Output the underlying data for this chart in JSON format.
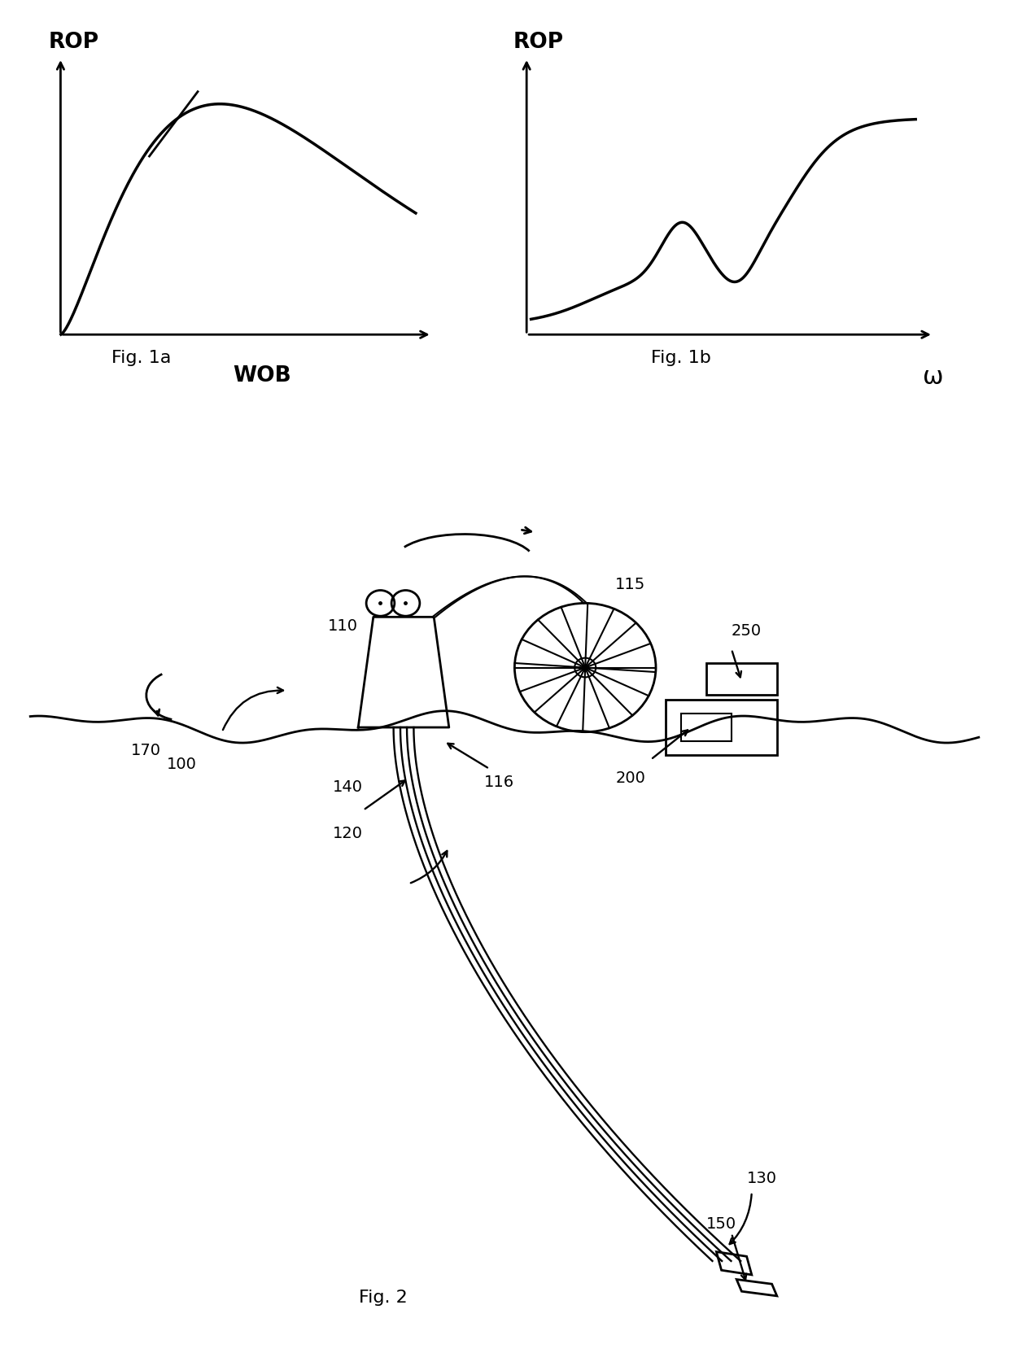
{
  "bg_color": "#ffffff",
  "line_color": "#000000",
  "fig_width": 12.4,
  "fig_height": 16.63,
  "fig1a_label": "Fig. 1a",
  "fig1b_label": "Fig. 1b",
  "fig2_label": "Fig. 2",
  "rop_label": "ROP",
  "wob_label": "WOB",
  "omega_label": "ω"
}
